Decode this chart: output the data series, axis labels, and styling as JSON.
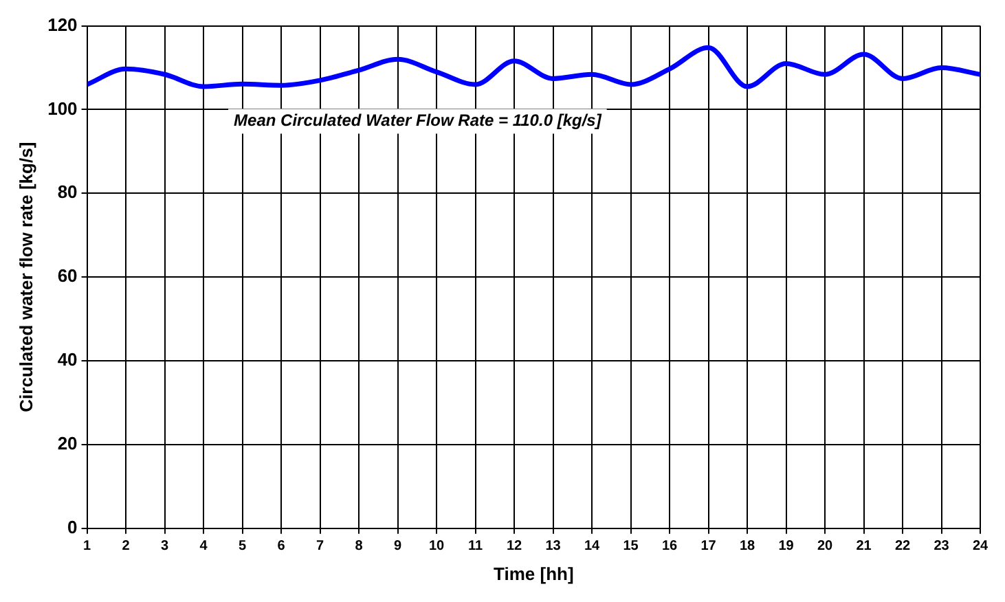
{
  "chart_data": {
    "type": "line",
    "xlabel": "Time [hh]",
    "ylabel": "Circulated water flow rate [kg/s]",
    "annotations": [
      "Mean Circulated Water Flow Rate = 110.0 [kg/s]"
    ],
    "x": [
      1,
      2,
      3,
      4,
      5,
      6,
      7,
      8,
      9,
      10,
      11,
      12,
      13,
      14,
      15,
      16,
      17,
      18,
      19,
      20,
      21,
      22,
      23,
      24
    ],
    "series": [
      {
        "color": "#0000ff",
        "values": [
          106,
          109.7,
          108.4,
          105.5,
          106.1,
          105.8,
          107,
          109.4,
          112,
          109,
          106,
          111.6,
          107.4,
          108.4,
          106,
          109.7,
          114.8,
          105.5,
          111,
          108.4,
          113.2,
          107.4,
          110,
          108.4
        ]
      }
    ],
    "xlim": [
      1,
      24
    ],
    "xticks": [
      1,
      2,
      3,
      4,
      5,
      6,
      7,
      8,
      9,
      10,
      11,
      12,
      13,
      14,
      15,
      16,
      17,
      18,
      19,
      20,
      21,
      22,
      23,
      24
    ],
    "ylim": [
      0,
      120
    ],
    "yticks": [
      0,
      20,
      40,
      60,
      80,
      100,
      120
    ],
    "grid": true,
    "legend": false,
    "marker": "none",
    "line_style": "solid"
  }
}
